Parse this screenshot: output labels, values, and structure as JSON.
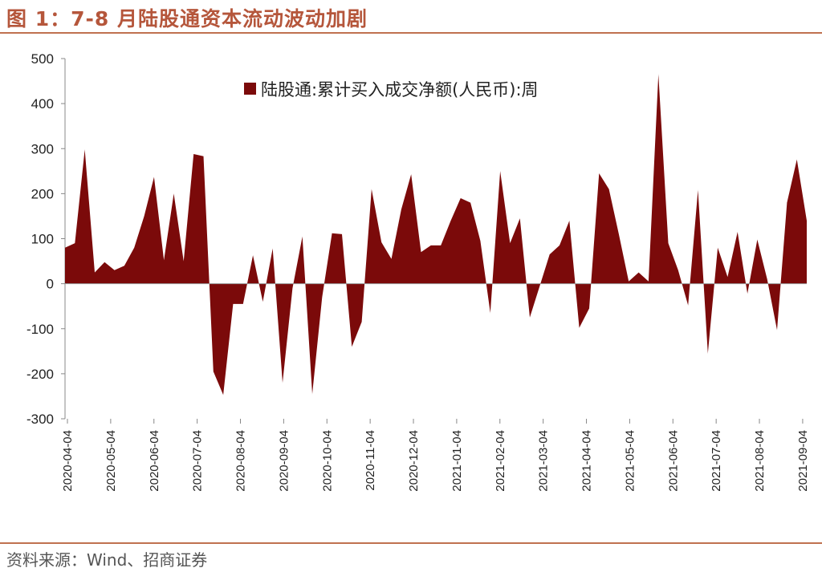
{
  "figure": {
    "title": "图 1：7-8 月陆股通资本流动波动加剧",
    "source": "资料来源：Wind、招商证券"
  },
  "chart_data": {
    "type": "area",
    "title": "",
    "xlabel": "",
    "ylabel": "",
    "ylim": [
      -300,
      500
    ],
    "yticks": [
      500,
      400,
      300,
      200,
      100,
      0,
      -100,
      -200,
      -300
    ],
    "grid": false,
    "legend_position": "top",
    "colors": {
      "fill": "#7b0a0a"
    },
    "x_tick_labels": [
      "2020-04-04",
      "2020-05-04",
      "2020-06-04",
      "2020-07-04",
      "2020-08-04",
      "2020-09-04",
      "2020-10-04",
      "2020-11-04",
      "2020-12-04",
      "2021-01-04",
      "2021-02-04",
      "2021-03-04",
      "2021-04-04",
      "2021-05-04",
      "2021-06-04",
      "2021-07-04",
      "2021-08-04",
      "2021-09-04"
    ],
    "series": [
      {
        "name": "陆股通:累计买入成交净额(人民币):周",
        "values": [
          80,
          90,
          298,
          25,
          48,
          30,
          40,
          80,
          150,
          237,
          52,
          200,
          50,
          288,
          283,
          -195,
          -247,
          -45,
          -45,
          63,
          -40,
          78,
          -220,
          -10,
          105,
          -245,
          -30,
          112,
          110,
          -140,
          -85,
          210,
          92,
          55,
          165,
          243,
          70,
          85,
          85,
          140,
          190,
          180,
          95,
          -65,
          250,
          90,
          145,
          -75,
          -5,
          65,
          85,
          140,
          -98,
          -55,
          245,
          210,
          110,
          5,
          25,
          5,
          465,
          90,
          30,
          -48,
          208,
          -155,
          80,
          15,
          115,
          -22,
          98,
          10,
          -103,
          180,
          276,
          140
        ]
      }
    ]
  }
}
